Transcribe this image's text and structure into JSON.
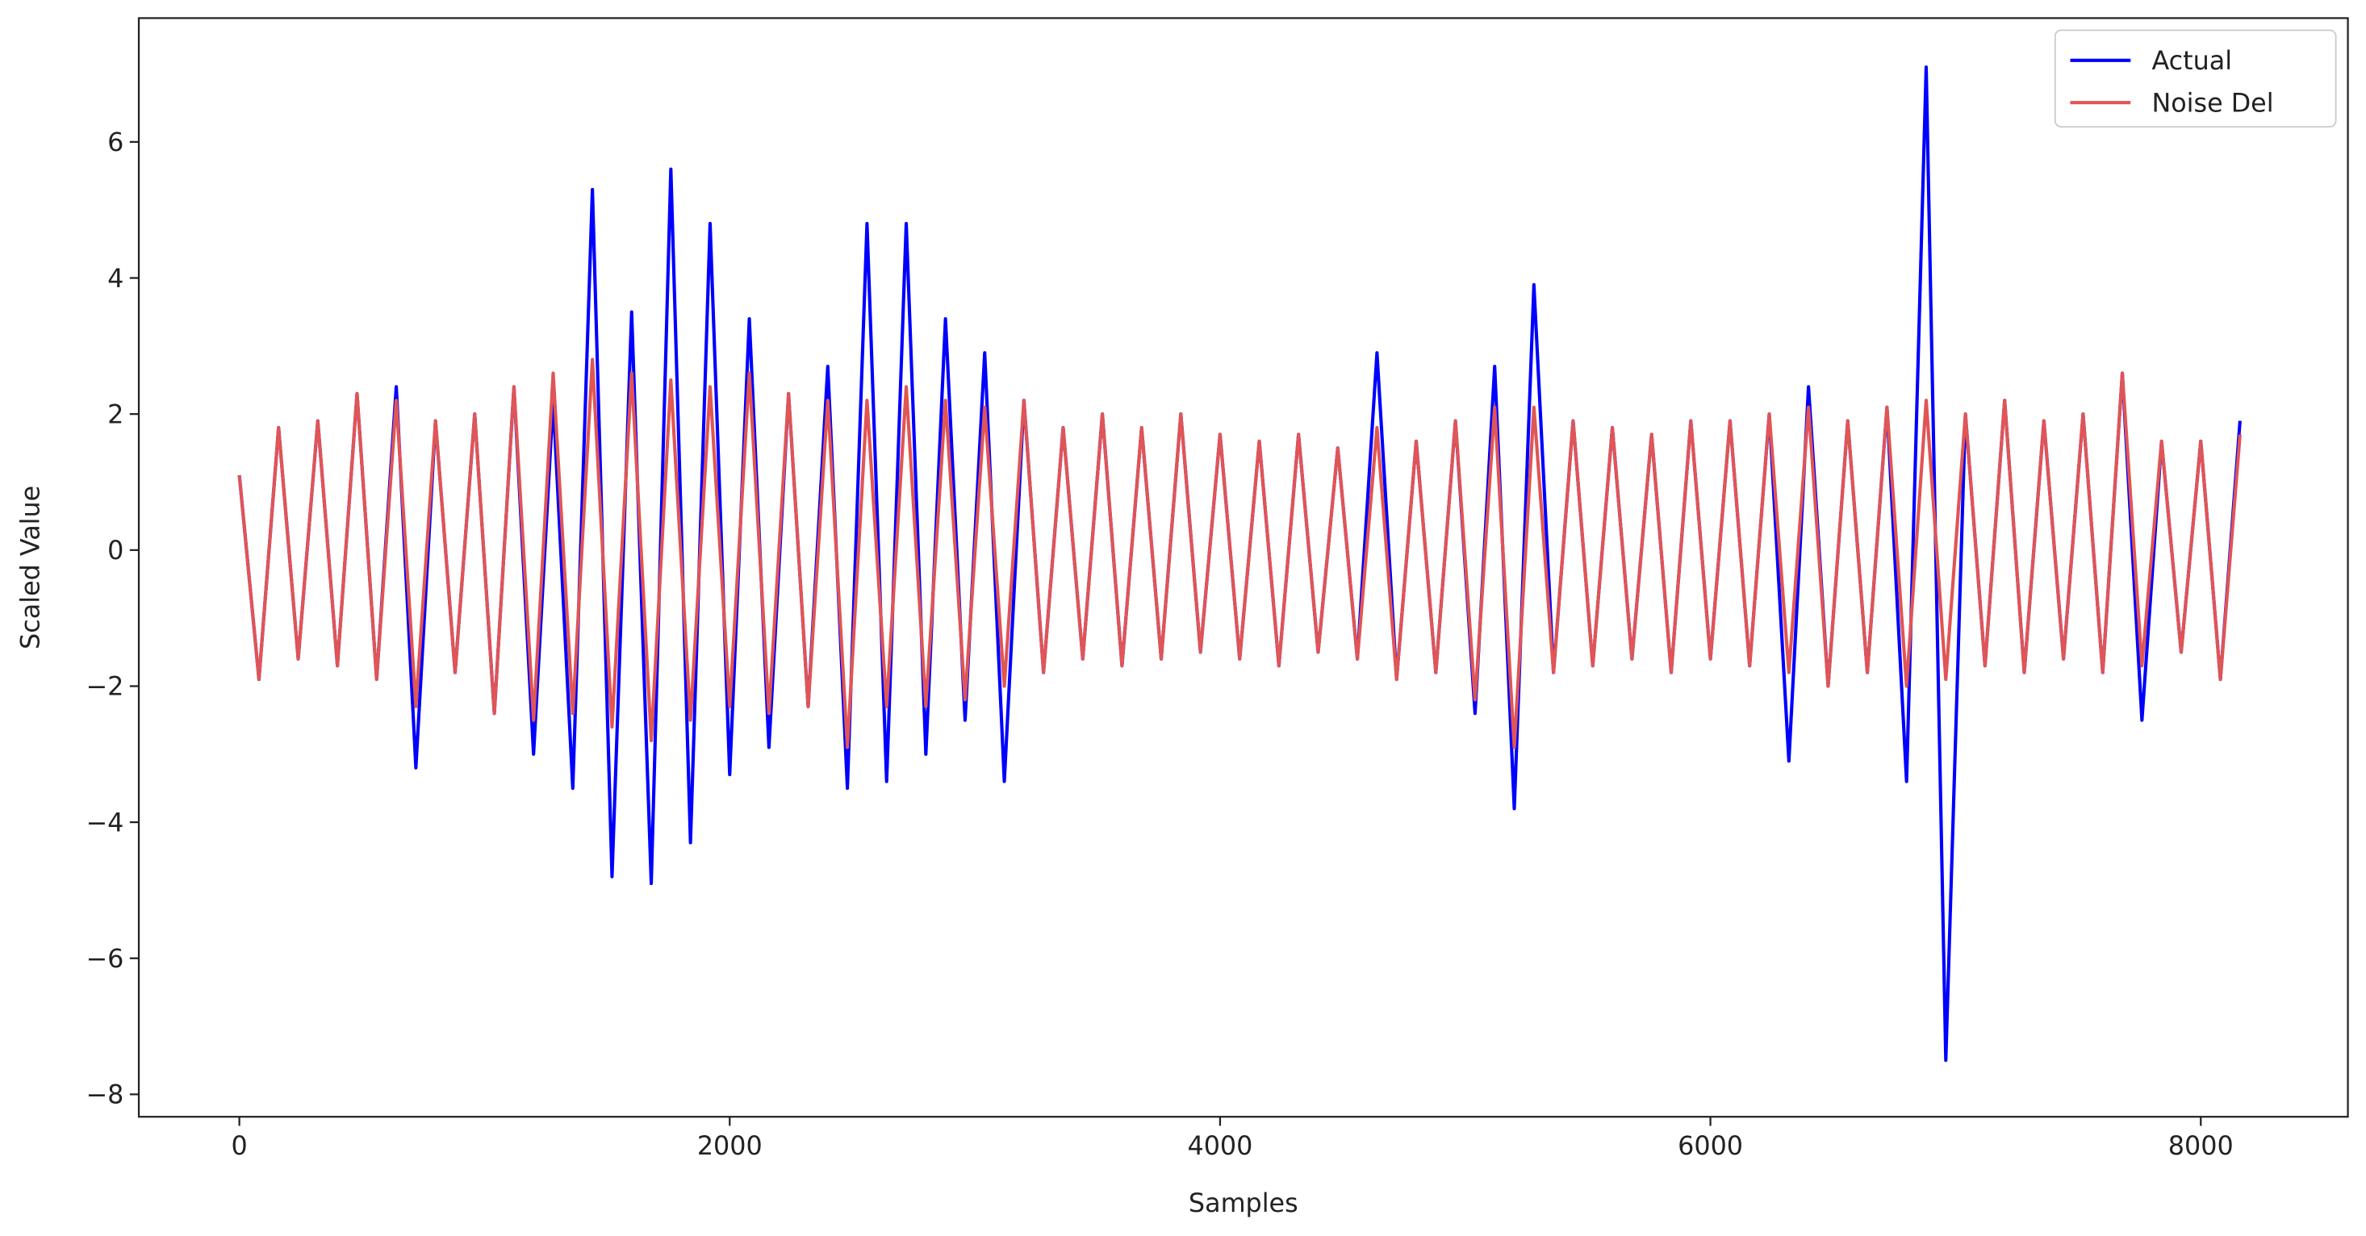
{
  "chart_data": {
    "type": "line",
    "x_label": "Samples",
    "y_label": "Scaled Value",
    "x": [
      0,
      80,
      160,
      240,
      320,
      400,
      480,
      560,
      640,
      720,
      800,
      880,
      960,
      1040,
      1120,
      1200,
      1280,
      1360,
      1440,
      1520,
      1600,
      1680,
      1760,
      1840,
      1920,
      2000,
      2080,
      2160,
      2240,
      2320,
      2400,
      2480,
      2560,
      2640,
      2720,
      2800,
      2880,
      2960,
      3040,
      3120,
      3200,
      3280,
      3360,
      3440,
      3520,
      3600,
      3680,
      3760,
      3840,
      3920,
      4000,
      4080,
      4160,
      4240,
      4320,
      4400,
      4480,
      4560,
      4640,
      4720,
      4800,
      4880,
      4960,
      5040,
      5120,
      5200,
      5280,
      5360,
      5440,
      5520,
      5600,
      5680,
      5760,
      5840,
      5920,
      6000,
      6080,
      6160,
      6240,
      6320,
      6400,
      6480,
      6560,
      6640,
      6720,
      6800,
      6880,
      6960,
      7040,
      7120,
      7200,
      7280,
      7360,
      7440,
      7520,
      7600,
      7680,
      7760,
      7840,
      7920,
      8000,
      8080,
      8160
    ],
    "series": [
      {
        "name": "Actual",
        "color": "#0000ff",
        "values": [
          1.1,
          -1.9,
          1.8,
          -1.6,
          1.9,
          -1.7,
          2.3,
          -1.9,
          2.4,
          -3.2,
          1.9,
          -1.8,
          2.0,
          -2.4,
          2.4,
          -3.0,
          2.2,
          -3.5,
          5.3,
          -4.8,
          3.5,
          -4.9,
          5.6,
          -4.3,
          4.8,
          -3.3,
          3.4,
          -2.9,
          2.3,
          -2.3,
          2.7,
          -3.5,
          4.8,
          -3.4,
          4.8,
          -3.0,
          3.4,
          -2.5,
          2.9,
          -3.4,
          2.2,
          -1.8,
          1.8,
          -1.6,
          2.0,
          -1.7,
          1.8,
          -1.6,
          2.0,
          -1.5,
          1.7,
          -1.6,
          1.6,
          -1.7,
          1.7,
          -1.5,
          1.5,
          -1.6,
          2.9,
          -1.9,
          1.6,
          -1.8,
          1.9,
          -2.4,
          2.7,
          -3.8,
          3.9,
          -1.8,
          1.9,
          -1.7,
          1.8,
          -1.6,
          1.7,
          -1.8,
          1.9,
          -1.6,
          1.9,
          -1.7,
          2.0,
          -3.1,
          2.4,
          -2.0,
          1.9,
          -1.8,
          2.1,
          -3.4,
          7.1,
          -7.5,
          2.0,
          -1.7,
          2.2,
          -1.8,
          1.9,
          -1.6,
          2.0,
          -1.8,
          2.6,
          -2.5,
          1.6,
          -1.5,
          1.6,
          -1.9,
          1.9
        ]
      },
      {
        "name": "Noise Del",
        "color": "#e05555",
        "values": [
          1.1,
          -1.9,
          1.8,
          -1.6,
          1.9,
          -1.7,
          2.3,
          -1.9,
          2.2,
          -2.3,
          1.9,
          -1.8,
          2.0,
          -2.4,
          2.4,
          -2.5,
          2.6,
          -2.4,
          2.8,
          -2.6,
          2.6,
          -2.8,
          2.5,
          -2.5,
          2.4,
          -2.3,
          2.6,
          -2.4,
          2.3,
          -2.3,
          2.2,
          -2.9,
          2.2,
          -2.3,
          2.4,
          -2.3,
          2.2,
          -2.2,
          2.1,
          -2.0,
          2.2,
          -1.8,
          1.8,
          -1.6,
          2.0,
          -1.7,
          1.8,
          -1.6,
          2.0,
          -1.5,
          1.7,
          -1.6,
          1.6,
          -1.7,
          1.7,
          -1.5,
          1.5,
          -1.6,
          1.8,
          -1.9,
          1.6,
          -1.8,
          1.9,
          -2.2,
          2.1,
          -2.9,
          2.1,
          -1.8,
          1.9,
          -1.7,
          1.8,
          -1.6,
          1.7,
          -1.8,
          1.9,
          -1.6,
          1.9,
          -1.7,
          2.0,
          -1.8,
          2.1,
          -2.0,
          1.9,
          -1.8,
          2.1,
          -2.0,
          2.2,
          -1.9,
          2.0,
          -1.7,
          2.2,
          -1.8,
          1.9,
          -1.6,
          2.0,
          -1.8,
          2.6,
          -1.7,
          1.6,
          -1.5,
          1.6,
          -1.9,
          1.7
        ]
      }
    ],
    "xlim": [
      -410,
      8600
    ],
    "ylim": [
      -8.33,
      7.82
    ],
    "xticks": [
      0,
      2000,
      4000,
      6000,
      8000
    ],
    "yticks": [
      {
        "value": -8,
        "label": "−8"
      },
      {
        "value": -6,
        "label": "−6"
      },
      {
        "value": -4,
        "label": "−4"
      },
      {
        "value": -2,
        "label": "−2"
      },
      0,
      2,
      4,
      6
    ],
    "legend": "upper right",
    "grid": false
  }
}
